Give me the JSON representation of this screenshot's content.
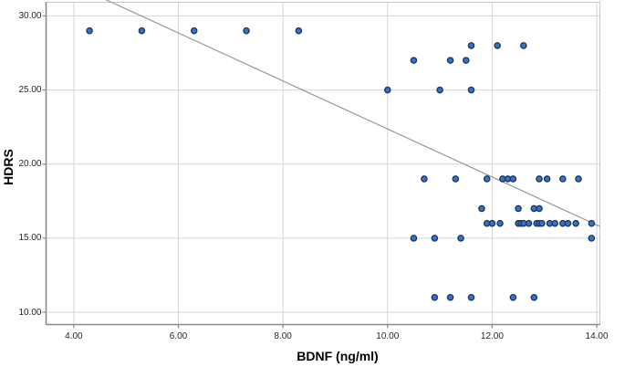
{
  "chart_data": {
    "type": "scatter",
    "title": "",
    "xlabel": "BDNF (ng/ml)",
    "ylabel": "HDRS",
    "x_ticks": [
      4,
      6,
      8,
      10,
      12,
      14
    ],
    "x_tick_labels": [
      "4.00",
      "6.00",
      "8.00",
      "10.00",
      "12.00",
      "14.00"
    ],
    "y_ticks": [
      10,
      15,
      20,
      25,
      30
    ],
    "y_tick_labels": [
      "10.00",
      "15.00",
      "20.00",
      "25.00",
      "30.00"
    ],
    "xlim": [
      3.47,
      14.06
    ],
    "ylim": [
      9.17,
      30.92
    ],
    "grid": true,
    "legend": false,
    "points": [
      [
        4.3,
        29
      ],
      [
        5.3,
        29
      ],
      [
        6.3,
        29
      ],
      [
        7.3,
        29
      ],
      [
        8.3,
        29
      ],
      [
        11.6,
        28
      ],
      [
        12.1,
        28
      ],
      [
        12.6,
        28
      ],
      [
        10.5,
        27
      ],
      [
        11.2,
        27
      ],
      [
        11.5,
        27
      ],
      [
        10.0,
        25
      ],
      [
        11.0,
        25
      ],
      [
        11.6,
        25
      ],
      [
        10.7,
        19
      ],
      [
        11.3,
        19
      ],
      [
        11.9,
        19
      ],
      [
        12.2,
        19
      ],
      [
        12.3,
        19
      ],
      [
        12.4,
        19
      ],
      [
        12.9,
        19
      ],
      [
        13.05,
        19
      ],
      [
        13.35,
        19
      ],
      [
        13.65,
        19
      ],
      [
        11.8,
        17
      ],
      [
        12.5,
        17
      ],
      [
        12.8,
        17
      ],
      [
        12.9,
        17
      ],
      [
        11.9,
        16
      ],
      [
        12.0,
        16
      ],
      [
        12.15,
        16
      ],
      [
        12.5,
        16
      ],
      [
        12.55,
        16
      ],
      [
        12.6,
        16
      ],
      [
        12.7,
        16
      ],
      [
        12.85,
        16
      ],
      [
        12.9,
        16
      ],
      [
        12.95,
        16
      ],
      [
        13.1,
        16
      ],
      [
        13.2,
        16
      ],
      [
        13.35,
        16
      ],
      [
        13.45,
        16
      ],
      [
        13.6,
        16
      ],
      [
        13.9,
        16
      ],
      [
        10.5,
        15
      ],
      [
        10.9,
        15
      ],
      [
        11.4,
        15
      ],
      [
        13.9,
        15
      ],
      [
        10.9,
        11
      ],
      [
        11.2,
        11
      ],
      [
        11.6,
        11
      ],
      [
        12.4,
        11
      ],
      [
        12.8,
        11
      ]
    ],
    "trend_line": {
      "x1": 4.55,
      "y1": 31.2,
      "x2": 14.06,
      "y2": 15.79,
      "slope": -1.62,
      "intercept": 38.6
    }
  },
  "colors": {
    "background": "#ffffff",
    "gridline": "#d6d6d6",
    "frame_light": "#c6c6c6",
    "axis_dark": "#8b8b8b",
    "tick_text": "#262626",
    "point_fill": "#3573cc",
    "point_stroke": "#22395c",
    "trend_line": "#9a9a9a"
  }
}
